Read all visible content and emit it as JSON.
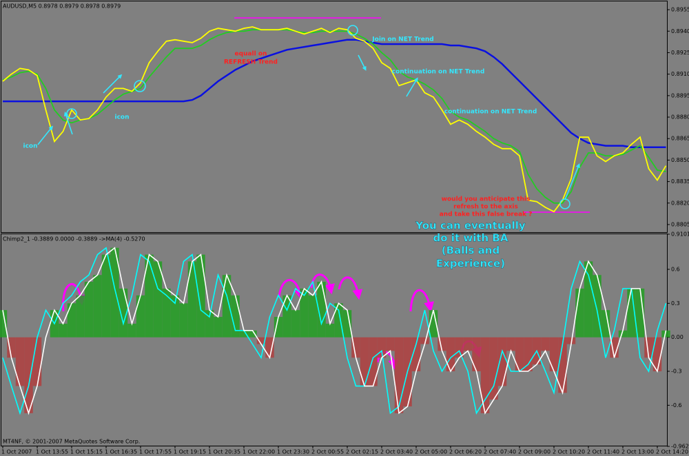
{
  "chart_data": [
    {
      "type": "line",
      "title": "AUDUSD,M5  0.8978 0.8979 0.8978 0.8979",
      "ylim": [
        0.87997,
        0.89608
      ],
      "yticks": [
        0.8955,
        {
          "value": 0.894,
          "label": "0.8940"
        },
        0.8925,
        {
          "value": 0.891,
          "label": "0.8910"
        },
        0.8895,
        {
          "value": 0.888,
          "label": "0.8880"
        },
        0.8865,
        {
          "value": 0.885,
          "label": "0.8850"
        },
        0.8835,
        {
          "value": 0.882,
          "label": "0.8820"
        },
        0.8805
      ],
      "grid": false,
      "series": [
        {
          "color": "#0a10e0",
          "values": [
            0.8891,
            0.8891,
            0.8891,
            0.8891,
            0.8891,
            0.8891,
            0.8891,
            0.8891,
            0.8891,
            0.8891,
            0.8891,
            0.8891,
            0.8891,
            0.8891,
            0.8891,
            0.8891,
            0.8891,
            0.8891,
            0.8891,
            0.8891,
            0.8891,
            0.8891,
            0.8892,
            0.8895,
            0.89,
            0.8905,
            0.8909,
            0.8913,
            0.8916,
            0.8919,
            0.8921,
            0.8923,
            0.8925,
            0.8927,
            0.8928,
            0.8929,
            0.893,
            0.8931,
            0.8932,
            0.8933,
            0.8934,
            0.8934,
            0.8933,
            0.8932,
            0.8931,
            0.8931,
            0.8931,
            0.8931,
            0.8931,
            0.8931,
            0.8931,
            0.8931,
            0.893,
            0.893,
            0.8929,
            0.8928,
            0.8926,
            0.8922,
            0.8917,
            0.8911,
            0.8905,
            0.8899,
            0.8893,
            0.8887,
            0.8881,
            0.8875,
            0.8869,
            0.8865,
            0.8862,
            0.8861,
            0.886,
            0.886,
            0.886,
            0.8859,
            0.8859,
            0.8859,
            0.8859,
            0.8859
          ]
        },
        {
          "color": "#22cc22",
          "values": [
            0.8906,
            0.8908,
            0.8911,
            0.8912,
            0.891,
            0.89,
            0.8885,
            0.8878,
            0.8876,
            0.8878,
            0.8879,
            0.8882,
            0.8887,
            0.8892,
            0.8896,
            0.8898,
            0.89,
            0.8908,
            0.8915,
            0.8922,
            0.8928,
            0.8928,
            0.8928,
            0.893,
            0.8934,
            0.8937,
            0.8939,
            0.894,
            0.894,
            0.8941,
            0.8941,
            0.8941,
            0.8941,
            0.8941,
            0.894,
            0.8939,
            0.8939,
            0.894,
            0.894,
            0.894,
            0.894,
            0.8938,
            0.8935,
            0.8931,
            0.8925,
            0.892,
            0.8912,
            0.8908,
            0.8906,
            0.8903,
            0.8899,
            0.8893,
            0.8884,
            0.888,
            0.8878,
            0.8874,
            0.887,
            0.8865,
            0.8862,
            0.886,
            0.8856,
            0.884,
            0.883,
            0.8824,
            0.882,
            0.882,
            0.8828,
            0.8845,
            0.8855,
            0.8855,
            0.8853,
            0.8853,
            0.8854,
            0.8857,
            0.886,
            0.8852,
            0.8843,
            0.8842
          ]
        },
        {
          "color": "#ffff00",
          "values": [
            0.8905,
            0.891,
            0.8914,
            0.8913,
            0.8909,
            0.8885,
            0.8863,
            0.887,
            0.8885,
            0.8878,
            0.8879,
            0.8885,
            0.8894,
            0.89,
            0.89,
            0.8898,
            0.8904,
            0.8918,
            0.8926,
            0.8933,
            0.8934,
            0.8933,
            0.8932,
            0.8935,
            0.894,
            0.8942,
            0.8941,
            0.894,
            0.8942,
            0.8943,
            0.8941,
            0.8941,
            0.8941,
            0.8942,
            0.894,
            0.8938,
            0.894,
            0.8942,
            0.8939,
            0.8942,
            0.8941,
            0.8935,
            0.8933,
            0.8928,
            0.8918,
            0.8914,
            0.8902,
            0.8904,
            0.8906,
            0.8897,
            0.8894,
            0.8885,
            0.8875,
            0.8878,
            0.8875,
            0.887,
            0.8866,
            0.8861,
            0.8858,
            0.8858,
            0.8853,
            0.8822,
            0.8821,
            0.8817,
            0.8814,
            0.8822,
            0.8837,
            0.8866,
            0.8866,
            0.8853,
            0.8849,
            0.8853,
            0.8855,
            0.8861,
            0.8866,
            0.8844,
            0.8836,
            0.8846
          ]
        }
      ],
      "annotations": [
        "icon",
        "icon",
        "equall on",
        "REFRESH Trend",
        "Join on NET Trend",
        "continuation on NET Trend",
        "continuation on NET Trend",
        "would you anticipate this",
        "refresh to the axis",
        "and take this false break ?",
        "You can eventually",
        "do it with BA",
        "(Balls and",
        "Experience)"
      ]
    },
    {
      "type": "bar",
      "title": "Chimp2_1 -0.3889 0.0000 -0.3889  ->MA(4) -0.5270",
      "footer": "MT4NF, © 2001-2007 MetaQuotes Software Corp.",
      "ylim": [
        -0.9628,
        0.9101
      ],
      "yticks": [
        0.9101,
        0.6,
        0.3,
        {
          "value": 0,
          "label": "0.00"
        },
        -0.3,
        -0.6,
        -0.9628
      ],
      "grid": false,
      "categories": [
        "1 Oct 2007",
        null,
        null,
        null,
        "1 Oct 13:55",
        null,
        null,
        null,
        "1 Oct 15:15",
        null,
        null,
        null,
        "1 Oct 16:35",
        null,
        null,
        null,
        "1 Oct 17:55",
        null,
        null,
        null,
        "1 Oct 19:15",
        null,
        null,
        null,
        "1 Oct 20:35",
        null,
        null,
        null,
        "1 Oct 22:00",
        null,
        null,
        null,
        "1 Oct 23:30",
        null,
        null,
        null,
        "2 Oct 00:55",
        null,
        null,
        null,
        "2 Oct 02:15",
        null,
        null,
        null,
        "2 Oct 03:40",
        null,
        null,
        null,
        "2 Oct 05:00",
        null,
        null,
        null,
        "2 Oct 06:20",
        null,
        null,
        null,
        "2 Oct 07:40",
        null,
        null,
        null,
        "2 Oct 09:00",
        null,
        null,
        null,
        "2 Oct 10:20",
        null,
        null,
        null,
        "2 Oct 11:40",
        null,
        null,
        null,
        "2 Oct 13:00",
        null,
        null,
        null,
        "2 Oct 14:20",
        null
      ],
      "series": [
        {
          "type": "bar",
          "color": "#22a022",
          "negative_color": "#b04040",
          "values": [
            0.24,
            -0.18,
            -0.43,
            -0.67,
            -0.43,
            0,
            0.24,
            0.12,
            0.3,
            0.37,
            0.49,
            0.55,
            0.73,
            0.79,
            0.43,
            0.12,
            0.37,
            0.73,
            0.67,
            0.43,
            0.37,
            0.3,
            0.67,
            0.73,
            0.24,
            0.18,
            0.55,
            0.37,
            0.06,
            0.06,
            -0.06,
            -0.18,
            0.18,
            0.37,
            0.24,
            0.43,
            0.37,
            0.49,
            0.12,
            0.3,
            0.24,
            -0.18,
            -0.43,
            -0.43,
            -0.18,
            -0.12,
            -0.67,
            -0.61,
            -0.3,
            -0.06,
            0.24,
            -0.12,
            -0.3,
            -0.18,
            -0.12,
            -0.3,
            -0.67,
            -0.55,
            -0.43,
            -0.12,
            -0.3,
            -0.3,
            -0.24,
            -0.12,
            -0.3,
            -0.49,
            -0.06,
            0.43,
            0.67,
            0.55,
            0.24,
            -0.18,
            0.06,
            0.43,
            0.43,
            -0.18,
            -0.3,
            0.06
          ]
        },
        {
          "type": "line",
          "color": "#00ffff",
          "values": [
            -0.18,
            -0.43,
            -0.67,
            -0.43,
            0,
            0.24,
            0.12,
            0.3,
            0.37,
            0.49,
            0.55,
            0.73,
            0.79,
            0.43,
            0.12,
            0.37,
            0.73,
            0.67,
            0.43,
            0.37,
            0.3,
            0.67,
            0.73,
            0.24,
            0.18,
            0.55,
            0.37,
            0.06,
            0.06,
            -0.06,
            -0.18,
            0.18,
            0.37,
            0.24,
            0.43,
            0.37,
            0.49,
            0.12,
            0.3,
            0.24,
            -0.18,
            -0.43,
            -0.43,
            -0.18,
            -0.12,
            -0.67,
            -0.61,
            -0.3,
            -0.06,
            0.24,
            -0.12,
            -0.3,
            -0.18,
            -0.12,
            -0.3,
            -0.67,
            -0.55,
            -0.43,
            -0.12,
            -0.3,
            -0.3,
            -0.24,
            -0.12,
            -0.3,
            -0.49,
            -0.06,
            0.43,
            0.67,
            0.55,
            0.24,
            -0.18,
            0.06,
            0.43,
            0.43,
            -0.18,
            -0.3,
            0.06,
            0.3
          ]
        },
        {
          "type": "line",
          "color": "#ffffff",
          "values": [
            0.24,
            -0.18,
            -0.43,
            -0.67,
            -0.43,
            0,
            0.24,
            0.12,
            0.3,
            0.37,
            0.49,
            0.55,
            0.73,
            0.79,
            0.43,
            0.12,
            0.37,
            0.73,
            0.67,
            0.43,
            0.37,
            0.3,
            0.67,
            0.73,
            0.24,
            0.18,
            0.55,
            0.37,
            0.06,
            0.06,
            -0.06,
            -0.18,
            0.18,
            0.37,
            0.24,
            0.43,
            0.37,
            0.49,
            0.12,
            0.3,
            0.24,
            -0.18,
            -0.43,
            -0.43,
            -0.18,
            -0.12,
            -0.67,
            -0.61,
            -0.3,
            -0.06,
            0.24,
            -0.12,
            -0.3,
            -0.18,
            -0.12,
            -0.3,
            -0.67,
            -0.55,
            -0.43,
            -0.12,
            -0.3,
            -0.3,
            -0.24,
            -0.12,
            -0.3,
            -0.49,
            -0.06,
            0.43,
            0.67,
            0.55,
            0.24,
            -0.18,
            0.06,
            0.43,
            0.43,
            -0.18,
            -0.3,
            0.06
          ]
        }
      ]
    }
  ]
}
